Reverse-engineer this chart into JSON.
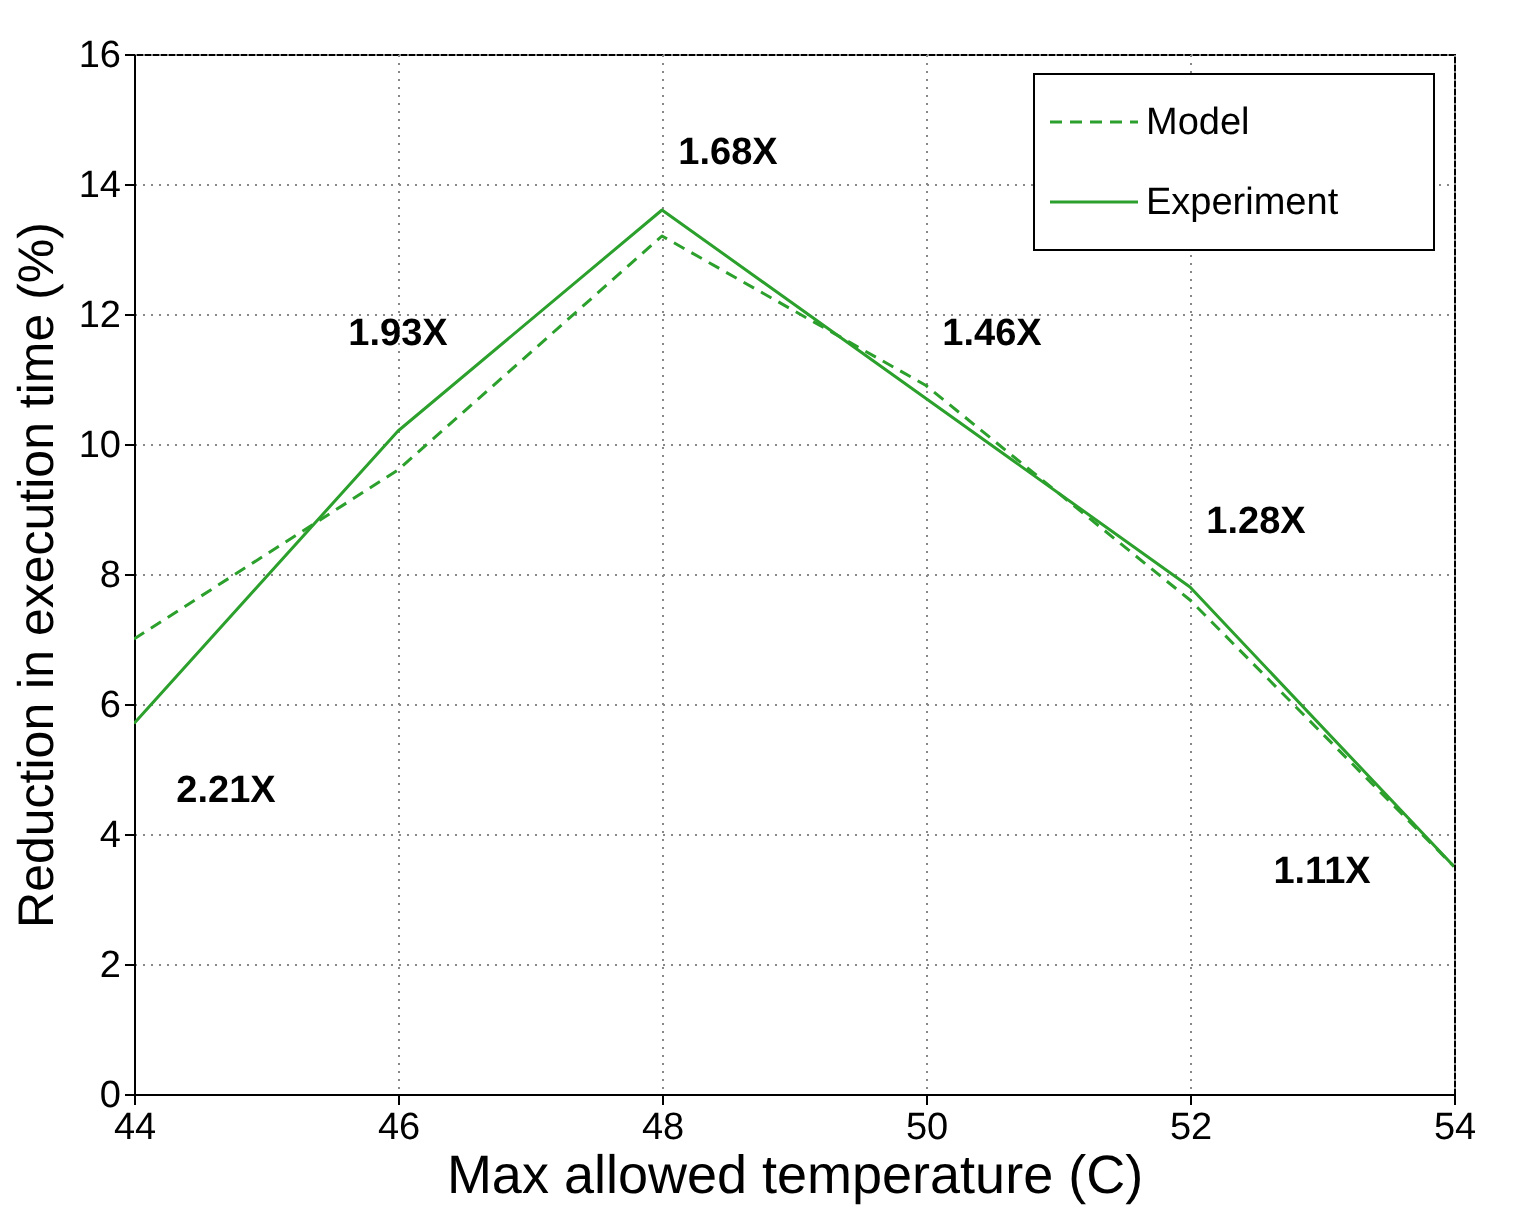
{
  "chart_data": {
    "type": "line",
    "xlabel": "Max allowed temperature (C)",
    "ylabel": "Reduction in execution time (%)",
    "x": [
      44,
      46,
      48,
      50,
      52,
      54
    ],
    "series": [
      {
        "name": "Model",
        "color": "#2ca02c",
        "line_style": "dashed",
        "values": [
          7.0,
          9.6,
          13.2,
          10.9,
          7.6,
          3.5
        ]
      },
      {
        "name": "Experiment",
        "color": "#2ca02c",
        "line_style": "solid",
        "values": [
          5.7,
          10.2,
          13.6,
          10.7,
          7.8,
          3.5
        ]
      }
    ],
    "xlim": [
      44,
      54
    ],
    "xticks": [
      44,
      46,
      48,
      50,
      52,
      54
    ],
    "ylim": [
      0,
      16
    ],
    "yticks": [
      0,
      2,
      4,
      6,
      8,
      10,
      12,
      14,
      16
    ],
    "grid": true,
    "legend": "top right",
    "marker": "none",
    "annotations": [
      {
        "text": "2.21X",
        "x": 44,
        "y": 5.7
      },
      {
        "text": "1.93X",
        "x": 46,
        "y": 10.2
      },
      {
        "text": "1.68X",
        "x": 48,
        "y": 13.6
      },
      {
        "text": "1.46X",
        "x": 50,
        "y": 10.7
      },
      {
        "text": "1.28X",
        "x": 52,
        "y": 7.8
      },
      {
        "text": "1.11X",
        "x": 54,
        "y": 3.5
      }
    ]
  }
}
